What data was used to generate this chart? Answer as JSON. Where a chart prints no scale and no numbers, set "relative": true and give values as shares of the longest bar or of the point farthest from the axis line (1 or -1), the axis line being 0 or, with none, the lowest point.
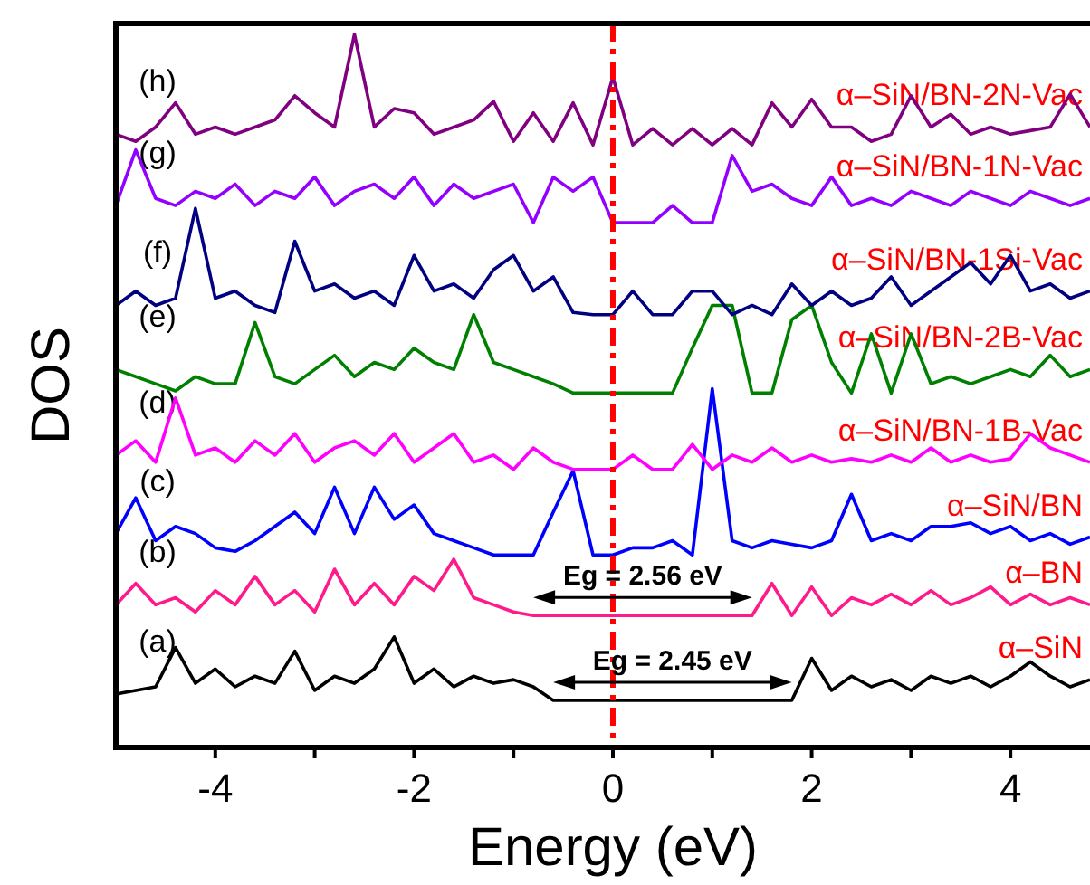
{
  "chart_data": {
    "type": "line",
    "relative": true,
    "xlabel": "Energy (eV)",
    "ylabel": "DOS",
    "xlim": [
      -5,
      4.8
    ],
    "xticks": [
      -4,
      {
        "value": -3,
        "label": null
      },
      -2,
      {
        "value": -1,
        "label": null
      },
      0,
      {
        "value": 1,
        "label": null
      },
      2,
      {
        "value": 3,
        "label": null
      },
      4
    ],
    "x": [
      -5,
      -4.8,
      -4.6,
      -4.4,
      -4.2,
      -4,
      -3.8,
      -3.6,
      -3.4,
      -3.2,
      -3,
      -2.8,
      -2.6,
      -2.4,
      -2.2,
      -2,
      -1.8,
      -1.6,
      -1.4,
      -1.2,
      -1,
      -0.8,
      -0.6,
      -0.4,
      -0.2,
      0,
      0.2,
      0.4,
      0.6,
      0.8,
      1,
      1.2,
      1.4,
      1.6,
      1.8,
      2,
      2.2,
      2.4,
      2.6,
      2.8,
      3,
      3.2,
      3.4,
      3.6,
      3.8,
      4,
      4.2,
      4.4,
      4.6,
      4.8
    ],
    "series": [
      {
        "name": "α–SiN",
        "color": "#000000",
        "values": [
          0.075,
          0.08,
          0.085,
          0.14,
          0.09,
          0.11,
          0.085,
          0.1,
          0.09,
          0.135,
          0.08,
          0.1,
          0.09,
          0.11,
          0.155,
          0.09,
          0.11,
          0.085,
          0.1,
          0.09,
          0.095,
          0.085,
          0.066,
          0.066,
          0.066,
          0.066,
          0.066,
          0.066,
          0.066,
          0.066,
          0.066,
          0.066,
          0.066,
          0.066,
          0.066,
          0.125,
          0.08,
          0.1,
          0.085,
          0.095,
          0.08,
          0.1,
          0.09,
          0.1,
          0.085,
          0.1,
          0.12,
          0.1,
          0.085,
          0.095
        ]
      },
      {
        "name": "α–BN",
        "color": "#ff1a8c",
        "values": [
          0.2,
          0.23,
          0.2,
          0.21,
          0.19,
          0.22,
          0.2,
          0.24,
          0.2,
          0.22,
          0.19,
          0.25,
          0.2,
          0.23,
          0.2,
          0.24,
          0.22,
          0.264,
          0.21,
          0.2,
          0.19,
          0.185,
          0.185,
          0.185,
          0.185,
          0.185,
          0.185,
          0.185,
          0.185,
          0.185,
          0.185,
          0.185,
          0.185,
          0.23,
          0.185,
          0.225,
          0.185,
          0.21,
          0.2,
          0.215,
          0.2,
          0.22,
          0.2,
          0.21,
          0.225,
          0.2,
          0.215,
          0.2,
          0.21,
          0.2
        ]
      },
      {
        "name": "α–SiN/BN",
        "color": "#0000ff",
        "values": [
          0.3,
          0.35,
          0.29,
          0.31,
          0.3,
          0.28,
          0.275,
          0.29,
          0.31,
          0.33,
          0.3,
          0.365,
          0.3,
          0.365,
          0.32,
          0.34,
          0.3,
          0.29,
          0.28,
          0.27,
          0.27,
          0.27,
          0.33,
          0.388,
          0.27,
          0.27,
          0.28,
          0.28,
          0.29,
          0.27,
          0.503,
          0.29,
          0.28,
          0.29,
          0.285,
          0.28,
          0.29,
          0.355,
          0.29,
          0.3,
          0.29,
          0.31,
          0.31,
          0.315,
          0.3,
          0.31,
          0.29,
          0.3,
          0.285,
          0.295
        ]
      },
      {
        "name": "α–SiN/BN-1B-Vac",
        "color": "#ff00ff",
        "values": [
          0.41,
          0.43,
          0.4,
          0.49,
          0.41,
          0.42,
          0.4,
          0.43,
          0.41,
          0.44,
          0.4,
          0.42,
          0.43,
          0.41,
          0.44,
          0.4,
          0.42,
          0.44,
          0.4,
          0.41,
          0.39,
          0.42,
          0.4,
          0.39,
          0.39,
          0.39,
          0.41,
          0.39,
          0.39,
          0.425,
          0.39,
          0.41,
          0.4,
          0.42,
          0.4,
          0.41,
          0.4,
          0.405,
          0.4,
          0.41,
          0.4,
          0.42,
          0.4,
          0.41,
          0.4,
          0.405,
          0.44,
          0.42,
          0.41,
          0.4
        ]
      },
      {
        "name": "α–SiN/BN-2B-Vac",
        "color": "#008000",
        "values": [
          0.53,
          0.52,
          0.51,
          0.5,
          0.52,
          0.51,
          0.51,
          0.596,
          0.52,
          0.51,
          0.53,
          0.55,
          0.52,
          0.54,
          0.53,
          0.56,
          0.54,
          0.53,
          0.607,
          0.54,
          0.53,
          0.52,
          0.51,
          0.497,
          0.497,
          0.497,
          0.497,
          0.497,
          0.497,
          0.56,
          0.62,
          0.62,
          0.497,
          0.497,
          0.6,
          0.62,
          0.54,
          0.497,
          0.58,
          0.497,
          0.58,
          0.51,
          0.52,
          0.51,
          0.52,
          0.53,
          0.52,
          0.55,
          0.52,
          0.53
        ]
      },
      {
        "name": "α–SiN/BN-1Si-Vac",
        "color": "#000080",
        "values": [
          0.62,
          0.64,
          0.62,
          0.63,
          0.756,
          0.63,
          0.64,
          0.62,
          0.61,
          0.71,
          0.64,
          0.65,
          0.63,
          0.64,
          0.62,
          0.69,
          0.64,
          0.65,
          0.63,
          0.67,
          0.69,
          0.64,
          0.66,
          0.61,
          0.607,
          0.607,
          0.64,
          0.607,
          0.607,
          0.64,
          0.64,
          0.607,
          0.62,
          0.607,
          0.65,
          0.62,
          0.64,
          0.62,
          0.63,
          0.66,
          0.62,
          0.64,
          0.66,
          0.68,
          0.65,
          0.69,
          0.64,
          0.65,
          0.63,
          0.64
        ]
      },
      {
        "name": "α–SiN/BN-1N-Vac",
        "color": "#9400ff",
        "values": [
          0.76,
          0.838,
          0.77,
          0.76,
          0.78,
          0.77,
          0.79,
          0.76,
          0.78,
          0.77,
          0.8,
          0.76,
          0.78,
          0.79,
          0.77,
          0.8,
          0.76,
          0.79,
          0.77,
          0.78,
          0.79,
          0.736,
          0.8,
          0.78,
          0.8,
          0.736,
          0.736,
          0.736,
          0.76,
          0.736,
          0.736,
          0.83,
          0.78,
          0.79,
          0.77,
          0.76,
          0.8,
          0.76,
          0.77,
          0.76,
          0.78,
          0.77,
          0.76,
          0.78,
          0.77,
          0.76,
          0.78,
          0.77,
          0.76,
          0.77
        ]
      },
      {
        "name": "α–SiN/BN-2N-Vac",
        "color": "#800080",
        "values": [
          0.86,
          0.85,
          0.87,
          0.904,
          0.86,
          0.87,
          0.86,
          0.87,
          0.88,
          0.914,
          0.89,
          0.87,
          1,
          0.87,
          0.896,
          0.89,
          0.86,
          0.87,
          0.88,
          0.906,
          0.85,
          0.89,
          0.85,
          0.904,
          0.845,
          0.94,
          0.845,
          0.868,
          0.845,
          0.868,
          0.845,
          0.868,
          0.845,
          0.904,
          0.87,
          0.909,
          0.87,
          0.87,
          0.85,
          0.86,
          0.914,
          0.87,
          0.888,
          0.86,
          0.87,
          0.86,
          0.865,
          0.87,
          0.916,
          0.87
        ]
      }
    ],
    "ref_lines": [
      {
        "axis": "x",
        "value": 0,
        "color": "#ff0000",
        "line_style": "dashed"
      }
    ],
    "annotations": [
      "(a)",
      "(b)",
      "(c)",
      "(d)",
      "(e)",
      "(f)",
      "(g)",
      "(h)",
      "Eg = 2.45 eV",
      "Eg = 2.56 eV"
    ],
    "grid": false,
    "legend": false,
    "marker": "none",
    "line_style": "solid"
  }
}
